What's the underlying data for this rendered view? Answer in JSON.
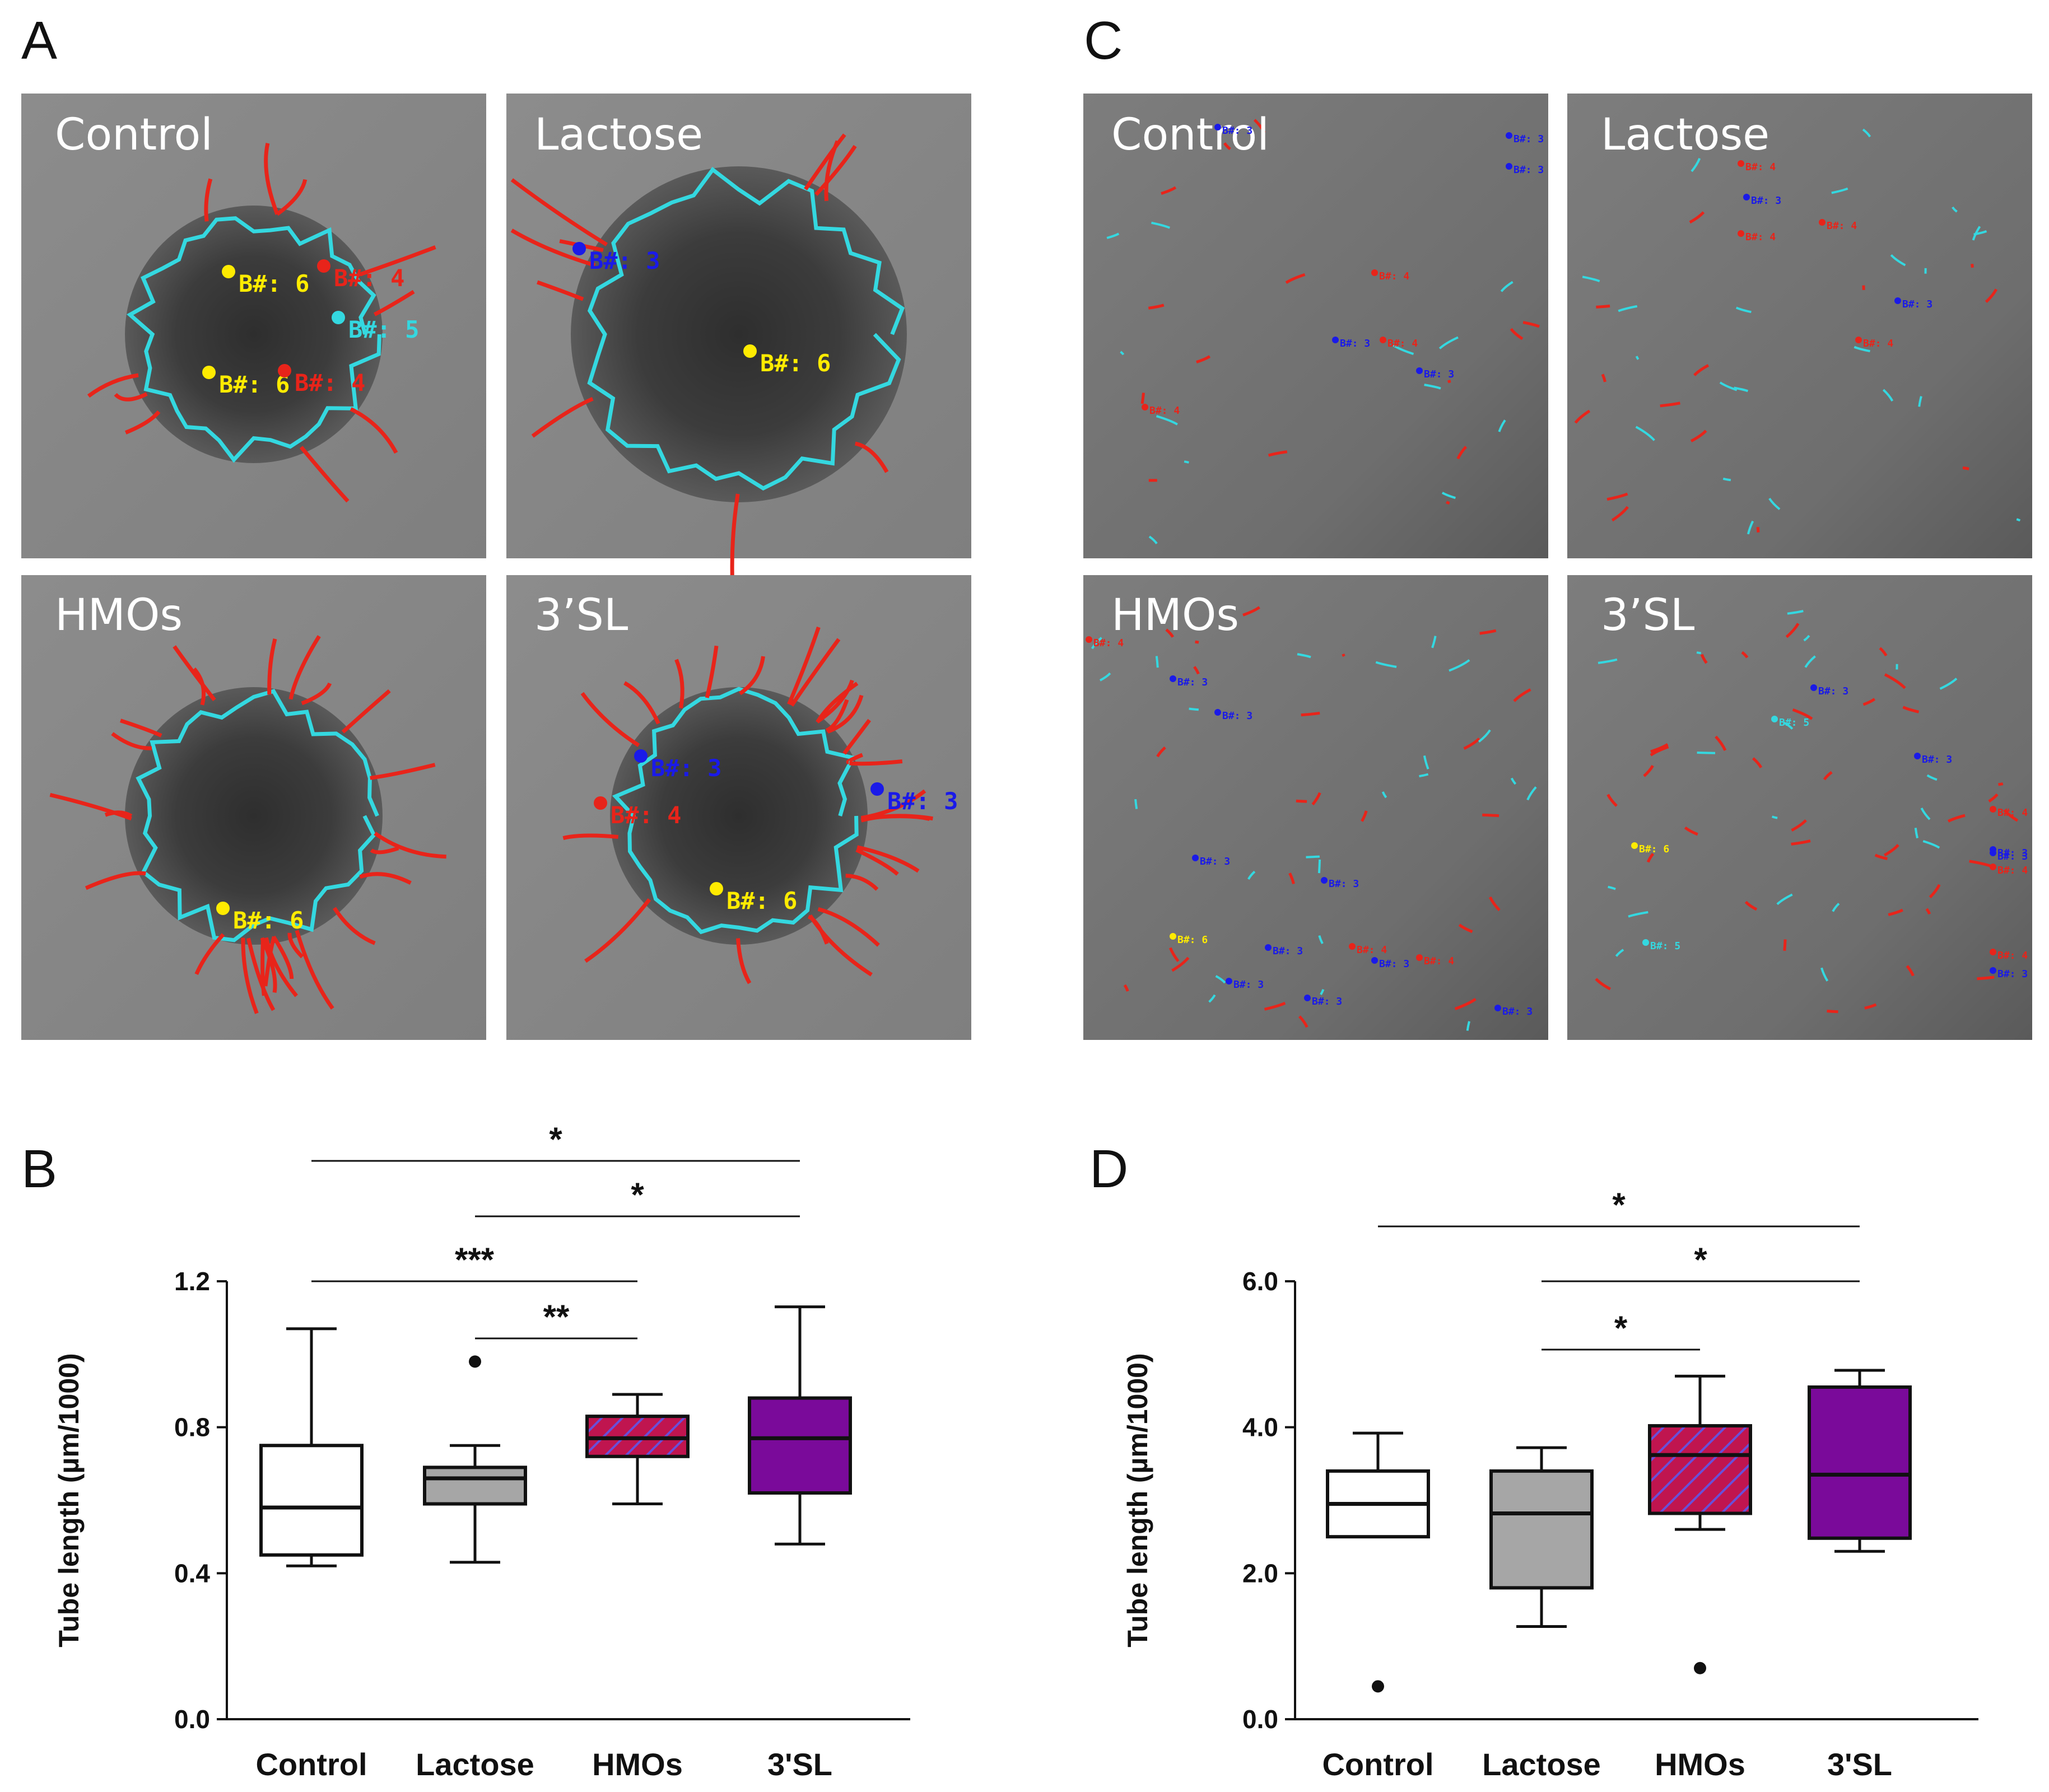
{
  "panels": {
    "A": {
      "letter": "A",
      "images": [
        {
          "label": "Control",
          "branch_marks": [
            {
              "text": "B#: 6",
              "color": "#ffeb00"
            },
            {
              "text": "B#: 4",
              "color": "#e8241a"
            },
            {
              "text": "B#: 5",
              "color": "#34d8e0"
            },
            {
              "text": "B#: 6",
              "color": "#ffeb00"
            },
            {
              "text": "B#: 4",
              "color": "#e8241a"
            }
          ]
        },
        {
          "label": "Lactose",
          "branch_marks": [
            {
              "text": "B#: 3",
              "color": "#1a1ae8"
            },
            {
              "text": "B#: 6",
              "color": "#ffeb00"
            }
          ]
        },
        {
          "label": "HMOs",
          "branch_marks": [
            {
              "text": "B#: 6",
              "color": "#ffeb00"
            }
          ]
        },
        {
          "label": "3’SL",
          "branch_marks": [
            {
              "text": "B#: 3",
              "color": "#1a1ae8"
            },
            {
              "text": "B#: 4",
              "color": "#e8241a"
            },
            {
              "text": "B#: 3",
              "color": "#1a1ae8"
            },
            {
              "text": "B#: 6",
              "color": "#ffeb00"
            }
          ]
        }
      ]
    },
    "C": {
      "letter": "C",
      "images": [
        {
          "label": "Control",
          "branch_marks": [
            {
              "text": "B#: 3",
              "color": "#1a1ae8"
            },
            {
              "text": "B#: 3",
              "color": "#1a1ae8"
            },
            {
              "text": "B#: 3",
              "color": "#1a1ae8"
            },
            {
              "text": "B#: 4",
              "color": "#e8241a"
            },
            {
              "text": "B#: 4",
              "color": "#e8241a"
            },
            {
              "text": "B#: 3",
              "color": "#1a1ae8"
            },
            {
              "text": "B#: 3",
              "color": "#1a1ae8"
            },
            {
              "text": "B#: 4",
              "color": "#e8241a"
            }
          ]
        },
        {
          "label": "Lactose",
          "branch_marks": [
            {
              "text": "B#: 4",
              "color": "#e8241a"
            },
            {
              "text": "B#: 4",
              "color": "#e8241a"
            },
            {
              "text": "B#: 3",
              "color": "#1a1ae8"
            },
            {
              "text": "B#: 4",
              "color": "#e8241a"
            },
            {
              "text": "B#: 3",
              "color": "#1a1ae8"
            },
            {
              "text": "B#: 4",
              "color": "#e8241a"
            }
          ]
        },
        {
          "label": "HMOs",
          "branch_marks": [
            {
              "text": "B#: 4",
              "color": "#e8241a"
            },
            {
              "text": "B#: 3",
              "color": "#1a1ae8"
            },
            {
              "text": "B#: 3",
              "color": "#1a1ae8"
            },
            {
              "text": "B#: 3",
              "color": "#1a1ae8"
            },
            {
              "text": "B#: 3",
              "color": "#1a1ae8"
            },
            {
              "text": "B#: 6",
              "color": "#ffeb00"
            },
            {
              "text": "B#: 3",
              "color": "#1a1ae8"
            },
            {
              "text": "B#: 3",
              "color": "#1a1ae8"
            },
            {
              "text": "B#: 3",
              "color": "#1a1ae8"
            },
            {
              "text": "B#: 3",
              "color": "#1a1ae8"
            },
            {
              "text": "B#: 4",
              "color": "#e8241a"
            },
            {
              "text": "B#: 4",
              "color": "#e8241a"
            },
            {
              "text": "B#: 3",
              "color": "#1a1ae8"
            }
          ]
        },
        {
          "label": "3’SL",
          "branch_marks": [
            {
              "text": "B#: 3",
              "color": "#1a1ae8"
            },
            {
              "text": "B#: 5",
              "color": "#34d8e0"
            },
            {
              "text": "B#: 3",
              "color": "#1a1ae8"
            },
            {
              "text": "B#: 4",
              "color": "#e8241a"
            },
            {
              "text": "B#: 6",
              "color": "#ffeb00"
            },
            {
              "text": "B#: 3",
              "color": "#1a1ae8"
            },
            {
              "text": "B#: 3",
              "color": "#1a1ae8"
            },
            {
              "text": "B#: 4",
              "color": "#e8241a"
            },
            {
              "text": "B#: 5",
              "color": "#34d8e0"
            },
            {
              "text": "B#: 4",
              "color": "#e8241a"
            },
            {
              "text": "B#: 3",
              "color": "#1a1ae8"
            }
          ]
        }
      ]
    },
    "B": {
      "letter": "B"
    },
    "D": {
      "letter": "D"
    }
  },
  "colors": {
    "control": "#ffffff",
    "lactose": "#a6a6a6",
    "hmos_fill": "#c0154f",
    "hmos_hatch": "#6a4fd8",
    "sl3": "#7a0a9a",
    "image_bg": "#8f8f8f",
    "tube_red": "#e8241a",
    "tube_cyan": "#34d8e0"
  },
  "chart_data": [
    {
      "id": "B",
      "type": "box",
      "ylabel": "Tube length (µm/1000)",
      "ylim": [
        0.0,
        1.2
      ],
      "yticks": [
        "0.0",
        "0.4",
        "0.8",
        "1.2"
      ],
      "categories": [
        "Control",
        "Lactose",
        "HMOs",
        "3'SL"
      ],
      "boxes": [
        {
          "min": 0.42,
          "q1": 0.45,
          "median": 0.58,
          "q3": 0.75,
          "max": 1.07,
          "outliers": []
        },
        {
          "min": 0.43,
          "q1": 0.59,
          "median": 0.66,
          "q3": 0.69,
          "max": 0.75,
          "outliers": [
            0.98
          ]
        },
        {
          "min": 0.59,
          "q1": 0.72,
          "median": 0.77,
          "q3": 0.83,
          "max": 0.89,
          "outliers": []
        },
        {
          "min": 0.48,
          "q1": 0.62,
          "median": 0.77,
          "q3": 0.88,
          "max": 1.13,
          "outliers": []
        }
      ],
      "significance": [
        {
          "from": 0,
          "to": 3,
          "label": "*"
        },
        {
          "from": 1,
          "to": 3,
          "label": "*"
        },
        {
          "from": 0,
          "to": 2,
          "label": "***"
        },
        {
          "from": 1,
          "to": 2,
          "label": "**"
        }
      ]
    },
    {
      "id": "D",
      "type": "box",
      "ylabel": "Tube length (µm/1000)",
      "ylim": [
        0.0,
        6.0
      ],
      "yticks": [
        "0.0",
        "2.0",
        "4.0",
        "6.0"
      ],
      "categories": [
        "Control",
        "Lactose",
        "HMOs",
        "3'SL"
      ],
      "boxes": [
        {
          "min": 2.5,
          "q1": 2.5,
          "median": 2.95,
          "q3": 3.4,
          "max": 3.92,
          "outliers": [
            0.45
          ]
        },
        {
          "min": 1.27,
          "q1": 1.8,
          "median": 2.82,
          "q3": 3.4,
          "max": 3.72,
          "outliers": []
        },
        {
          "min": 2.6,
          "q1": 2.82,
          "median": 3.62,
          "q3": 4.02,
          "max": 4.7,
          "outliers": [
            0.7
          ]
        },
        {
          "min": 2.3,
          "q1": 2.48,
          "median": 3.35,
          "q3": 4.55,
          "max": 4.78,
          "outliers": []
        }
      ],
      "significance": [
        {
          "from": 0,
          "to": 3,
          "label": "*"
        },
        {
          "from": 1,
          "to": 3,
          "label": "*"
        },
        {
          "from": 1,
          "to": 2,
          "label": "*"
        }
      ]
    }
  ]
}
